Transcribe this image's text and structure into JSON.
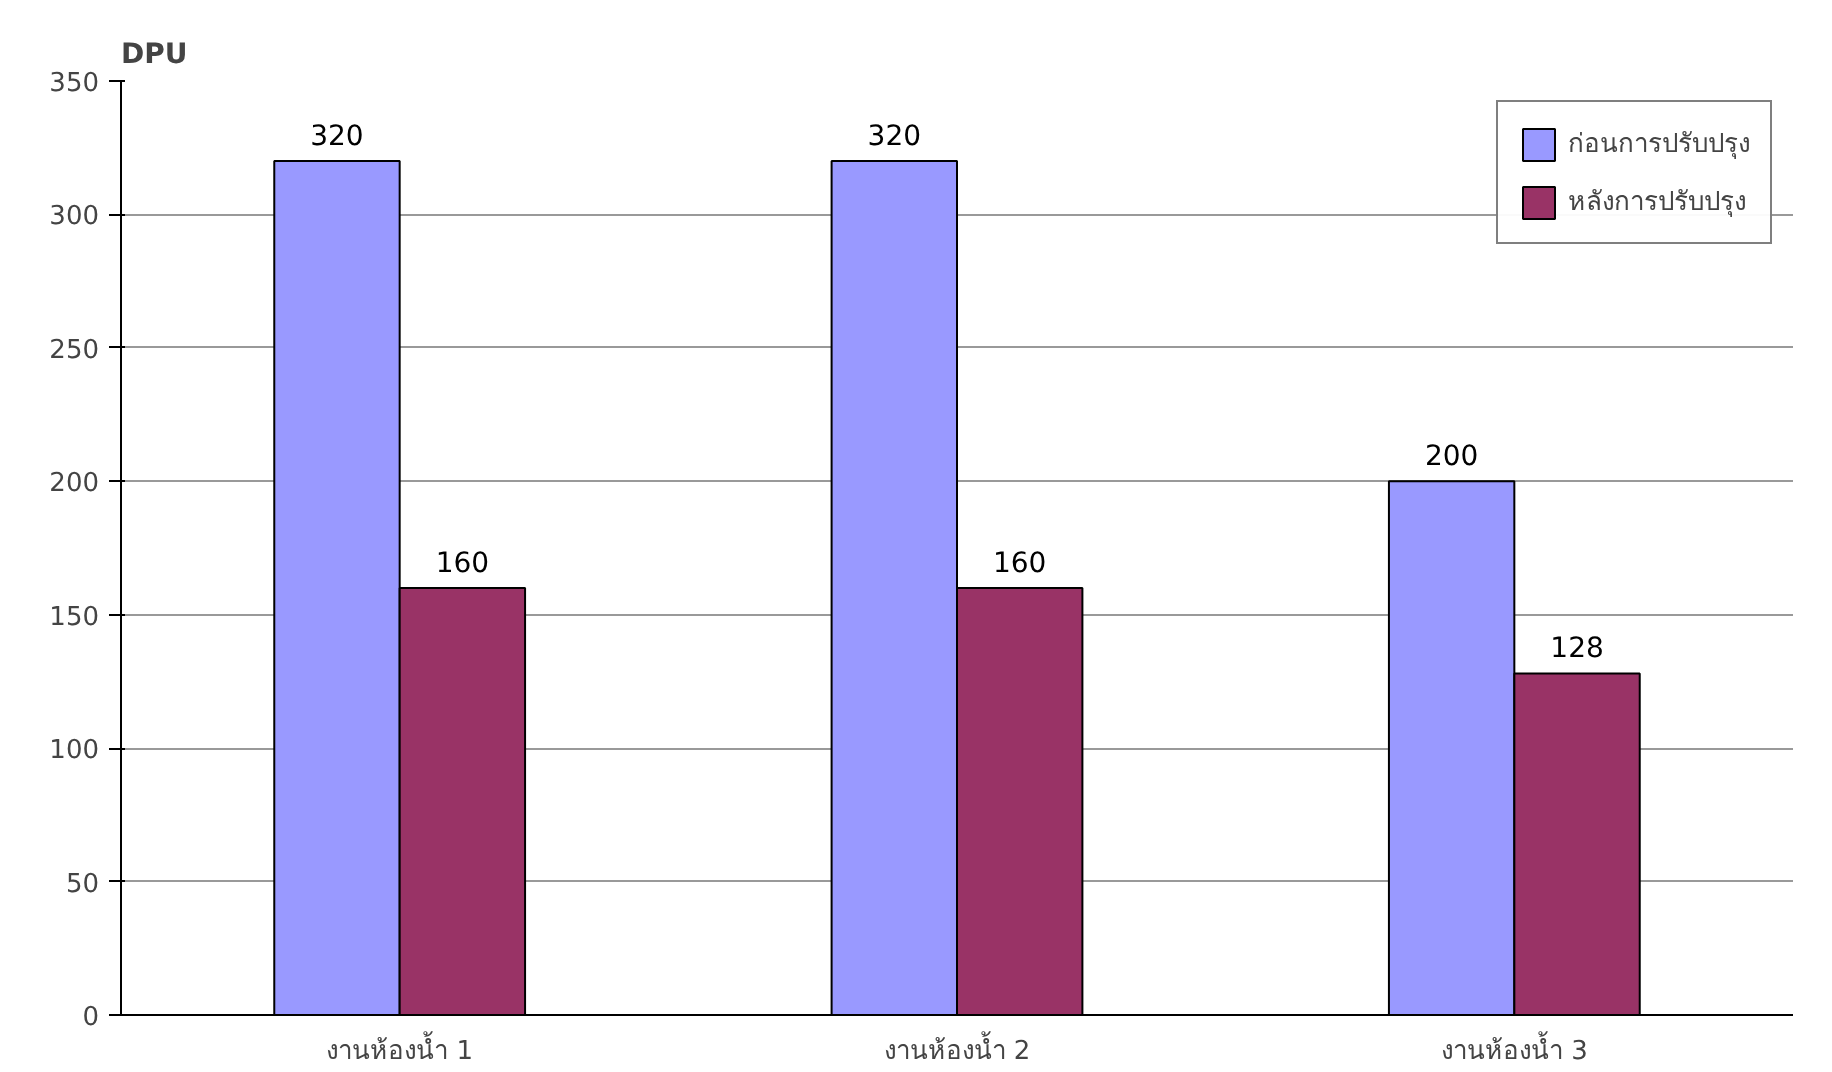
{
  "chart_data": {
    "type": "bar",
    "ylabel": "DPU",
    "categories": [
      "งานห้องน้ำ 1",
      "งานห้องน้ำ 2",
      "งานห้องน้ำ 3"
    ],
    "series": [
      {
        "name": "ก่อนการปรับปรุง",
        "color": "#9999ff",
        "values": [
          320,
          320,
          200
        ]
      },
      {
        "name": "หลังการปรับปรุง",
        "color": "#993366",
        "values": [
          160,
          160,
          128
        ]
      }
    ],
    "ylim": [
      0,
      350
    ],
    "yticks": [
      0,
      50,
      100,
      150,
      200,
      250,
      300,
      350
    ],
    "grid": "y",
    "legend": "top right",
    "data_labels": true
  }
}
